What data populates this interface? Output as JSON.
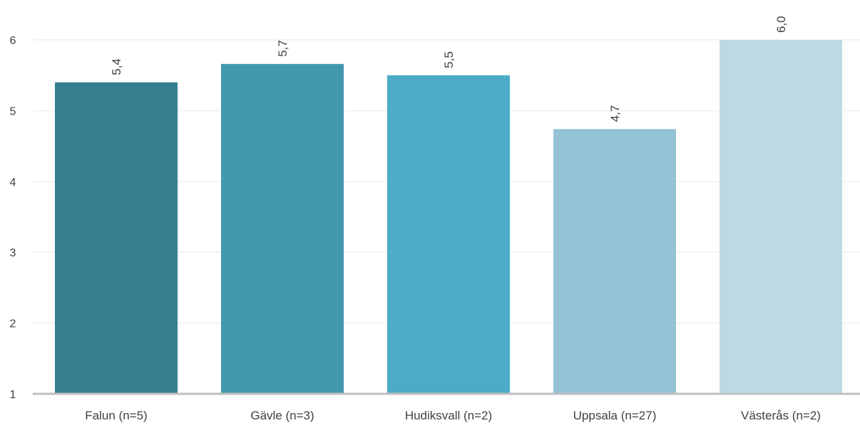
{
  "chart_data": {
    "type": "bar",
    "title": "",
    "xlabel": "",
    "ylabel": "",
    "categories": [
      "Falun (n=5)",
      "Gävle (n=3)",
      "Hudiksvall (n=2)",
      "Uppsala (n=27)",
      "Västerås (n=2)"
    ],
    "values": [
      5.4,
      5.66,
      5.5,
      4.74,
      6.0
    ],
    "value_labels": [
      "5,4",
      "5,7",
      "5,5",
      "4,7",
      "6,0"
    ],
    "colors": [
      "#357f91",
      "#4298af",
      "#4bacc6",
      "#93c3d4",
      "#bcd9e4"
    ],
    "ylim": [
      1,
      6
    ],
    "yticks": [
      1,
      2,
      3,
      4,
      5,
      6
    ],
    "ytick_labels": [
      "1",
      "2",
      "3",
      "4",
      "5",
      "6"
    ],
    "grid": true,
    "legend": "none",
    "gridline_color": "#efefef",
    "baseline_color": "#bfbfbf"
  }
}
